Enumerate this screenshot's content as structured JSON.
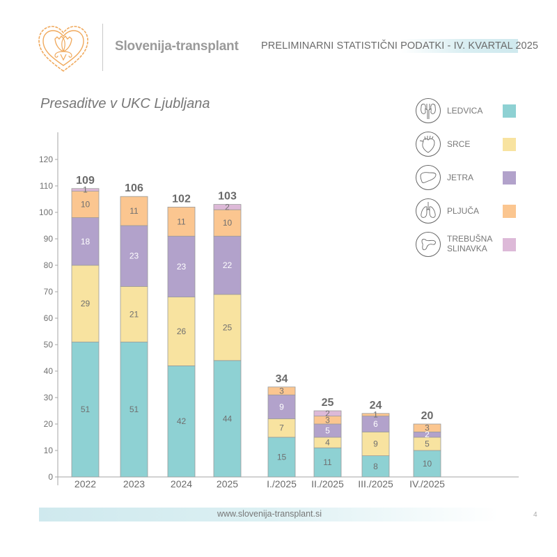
{
  "header": {
    "brand": "Slovenija-transplant",
    "title": "PRELIMINARNI STATISTIČNI PODATKI - IV. KVARTAL 2025",
    "logo_icon": "ornamental-heart-logo"
  },
  "legend": [
    {
      "label": "LEDVICA",
      "icon": "kidney-icon",
      "color": "#8ED1D3"
    },
    {
      "label": "SRCE",
      "icon": "heart-icon",
      "color": "#F8E3A0"
    },
    {
      "label": "JETRA",
      "icon": "liver-icon",
      "color": "#B2A2CB"
    },
    {
      "label": "PLJUČA",
      "icon": "lungs-icon",
      "color": "#FBC690"
    },
    {
      "label": "TREBUŠNA\nSLINAVKA",
      "icon": "pancreas-icon",
      "color": "#DDB9D8"
    }
  ],
  "footer": {
    "url": "www.slovenija-transplant.si",
    "page": "4"
  },
  "chart_data": {
    "type": "bar",
    "stacked": true,
    "title": "Presaditve v UKC Ljubljana",
    "xlabel": "",
    "ylabel": "",
    "ylim": [
      0,
      120
    ],
    "yticks": [
      0,
      10,
      20,
      30,
      40,
      50,
      60,
      70,
      80,
      90,
      100,
      110,
      120
    ],
    "grid": false,
    "legend_position": "top-right",
    "categories": [
      "2022",
      "2023",
      "2024",
      "2025",
      "I./2025",
      "II./2025",
      "III./2025",
      "IV./2025"
    ],
    "totals": [
      109,
      106,
      102,
      103,
      34,
      25,
      24,
      20
    ],
    "series": [
      {
        "name": "LEDVICA",
        "color": "#8ED1D3",
        "values": [
          51,
          51,
          42,
          44,
          15,
          11,
          8,
          10
        ]
      },
      {
        "name": "SRCE",
        "color": "#F8E3A0",
        "values": [
          29,
          21,
          26,
          25,
          7,
          4,
          9,
          5
        ]
      },
      {
        "name": "JETRA",
        "color": "#B2A2CB",
        "values": [
          18,
          23,
          23,
          22,
          9,
          5,
          6,
          2
        ]
      },
      {
        "name": "PLJUČA",
        "color": "#FBC690",
        "values": [
          10,
          11,
          11,
          10,
          3,
          3,
          1,
          3
        ]
      },
      {
        "name": "TREBUŠNA SLINAVKA",
        "color": "#DDB9D8",
        "values": [
          1,
          0,
          0,
          2,
          0,
          2,
          0,
          0
        ]
      }
    ]
  }
}
